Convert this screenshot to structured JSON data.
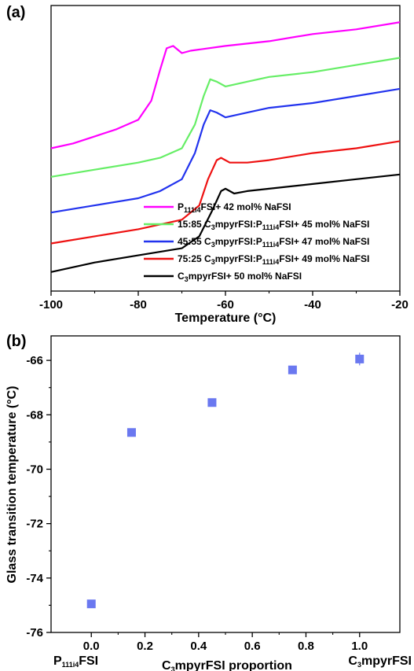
{
  "chart_data": [
    {
      "type": "line",
      "panel_label": "(a)",
      "xlabel": "Temperature (°C)",
      "ylabel": "",
      "xlim": [
        -100,
        -20
      ],
      "x_ticks": [
        "-100",
        "-80",
        "-60",
        "-40",
        "-20"
      ],
      "y_ticks_shown": false,
      "grid": false,
      "legend_position": "bottom-right",
      "series": [
        {
          "name": "P111i4FSI+ 42 mol% NaFSI",
          "label_parts": [
            "P",
            "111i4",
            "FSI+ 42 mol% NaFSI"
          ],
          "color": "#ff00ff",
          "x": [
            -100,
            -95,
            -90,
            -85,
            -80,
            -77,
            -75,
            -73.5,
            -72,
            -70,
            -68,
            -60,
            -50,
            -40,
            -30,
            -20
          ],
          "y": [
            6.0,
            6.2,
            6.5,
            6.8,
            7.2,
            8.0,
            9.3,
            10.2,
            10.3,
            10.0,
            10.1,
            10.3,
            10.5,
            10.8,
            11.0,
            11.3
          ]
        },
        {
          "name": "15:85 C3mpyrFSI:P111i4FSI+ 45 mol% NaFSI",
          "label_parts": [
            "15:85 C",
            "3",
            "mpyrFSI:P",
            "111i4",
            "FSI+ 45 mol% NaFSI"
          ],
          "color": "#66ee66",
          "x": [
            -100,
            -90,
            -80,
            -75,
            -70,
            -67,
            -65,
            -63.5,
            -62,
            -60,
            -55,
            -50,
            -40,
            -30,
            -20
          ],
          "y": [
            4.8,
            5.1,
            5.4,
            5.6,
            6.0,
            7.0,
            8.2,
            8.9,
            8.8,
            8.6,
            8.8,
            9.0,
            9.2,
            9.5,
            9.8
          ]
        },
        {
          "name": "45:55 C3mpyrFSI:P111i4FSI+ 47 mol% NaFSI",
          "label_parts": [
            "45:55 C",
            "3",
            "mpyrFSI:P",
            "111i4",
            "FSI+ 47 mol% NaFSI"
          ],
          "color": "#2233ee",
          "x": [
            -100,
            -90,
            -80,
            -75,
            -70,
            -67,
            -65,
            -63.5,
            -62,
            -60,
            -55,
            -50,
            -40,
            -30,
            -20
          ],
          "y": [
            3.3,
            3.6,
            3.9,
            4.2,
            4.7,
            5.8,
            7.0,
            7.6,
            7.5,
            7.3,
            7.5,
            7.7,
            7.9,
            8.2,
            8.5
          ]
        },
        {
          "name": "75:25 C3mpyrFSI:P111i4FSI+ 49 mol% NaFSI",
          "label_parts": [
            "75:25 C",
            "3",
            "mpyrFSI:P",
            "111i4",
            "FSI+ 49 mol% NaFSI"
          ],
          "color": "#ee1111",
          "x": [
            -100,
            -90,
            -80,
            -70,
            -66,
            -64,
            -62,
            -61,
            -59,
            -55,
            -50,
            -40,
            -30,
            -20
          ],
          "y": [
            2.0,
            2.3,
            2.6,
            3.0,
            3.6,
            4.7,
            5.5,
            5.6,
            5.4,
            5.4,
            5.5,
            5.8,
            6.0,
            6.3
          ]
        },
        {
          "name": "C3mpyrFSI+ 50 mol% NaFSI",
          "label_parts": [
            "C",
            "3",
            "mpyrFSI+ 50 mol% NaFSI"
          ],
          "color": "#000000",
          "x": [
            -100,
            -90,
            -80,
            -70,
            -66,
            -63,
            -61,
            -60,
            -58,
            -55,
            -50,
            -40,
            -30,
            -20
          ],
          "y": [
            0.8,
            1.2,
            1.5,
            1.8,
            2.3,
            3.4,
            4.2,
            4.3,
            4.1,
            4.2,
            4.3,
            4.5,
            4.7,
            4.9
          ]
        }
      ]
    },
    {
      "type": "scatter",
      "panel_label": "(b)",
      "xlabel": "C3mpyrFSI proportion",
      "xlabel_parts": [
        "C",
        "3",
        "mpyrFSI proportion"
      ],
      "ylabel": "Glass transition temperature (°C)",
      "xlim": [
        -0.15,
        1.15
      ],
      "ylim": [
        -76,
        -65.1
      ],
      "x_ticks": [
        "0.0",
        "0.2",
        "0.4",
        "0.6",
        "0.8",
        "1.0"
      ],
      "y_ticks": [
        "-76",
        "-74",
        "-72",
        "-70",
        "-68",
        "-66"
      ],
      "x_end_labels": {
        "left": "P111i4FSI",
        "left_parts": [
          "P",
          "111i4",
          "FSI"
        ],
        "right": "C3mpyrFSI",
        "right_parts": [
          "C",
          "3",
          "mpyrFSI"
        ]
      },
      "marker_color": "#6a78f0",
      "grid": false,
      "x": [
        0.0,
        0.15,
        0.45,
        0.75,
        1.0
      ],
      "y": [
        -74.95,
        -68.65,
        -67.55,
        -66.35,
        -65.95
      ]
    }
  ]
}
